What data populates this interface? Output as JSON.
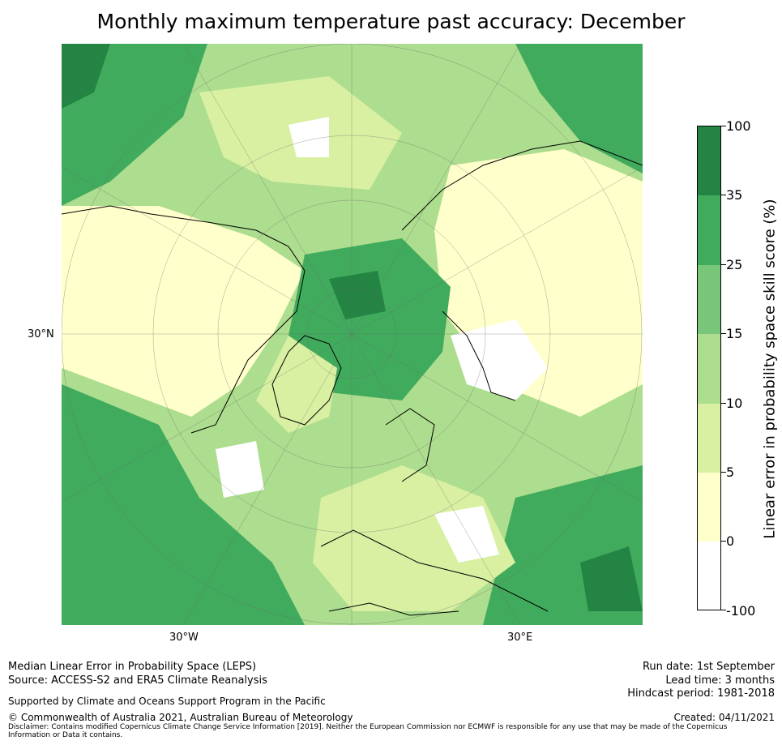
{
  "title": "Monthly maximum temperature past accuracy: December",
  "map": {
    "lat_labels": [
      "30°N"
    ],
    "lon_labels": [
      "30°W",
      "30°E"
    ]
  },
  "colorbar": {
    "label": "Linear error in probability space skill score (%)",
    "ticks": [
      "100",
      "35",
      "25",
      "15",
      "10",
      "5",
      "0",
      "-100"
    ],
    "colors": [
      "#238443",
      "#41ab5d",
      "#78c679",
      "#addd8e",
      "#d9f0a3",
      "#ffffcc",
      "#ffffff"
    ]
  },
  "footer": {
    "left_line1": "Median Linear Error in Probability Space (LEPS)",
    "left_line2": "Source: ACCESS-S2 and ERA5 Climate Reanalysis",
    "support": "Supported by Climate and Oceans Support Program in the Pacific",
    "copyright": "© Commonwealth of Australia 2021, Australian Bureau of Meteorology",
    "disclaimer": "Disclaimer: Contains modified Copernicus Climate Change Service Information [2019]. Neither the European Commission nor ECMWF is responsible for any use that may be made of the Copernicus Information or Data it contains.",
    "run_date": "Run date: 1st September",
    "lead_time": "Lead time: 3 months",
    "hindcast": "Hindcast period: 1981-2018",
    "created": "Created: 04/11/2021"
  }
}
